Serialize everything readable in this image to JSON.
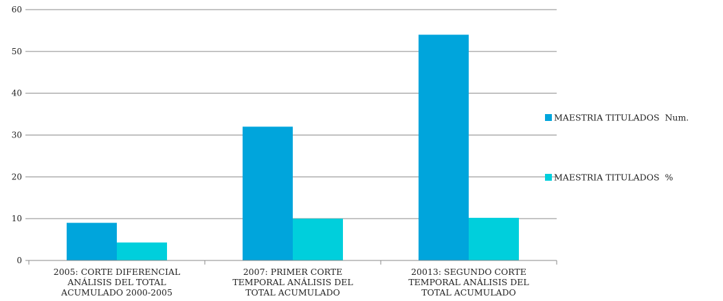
{
  "chart_data": {
    "type": "bar",
    "categories": [
      [
        "2005: CORTE DIFERENCIAL",
        "ANÁLISIS DEL TOTAL",
        "ACUMULADO 2000-2005"
      ],
      [
        "2007: PRIMER CORTE",
        "TEMPORAL ANÁLISIS DEL",
        "TOTAL ACUMULADO"
      ],
      [
        "20013: SEGUNDO CORTE",
        "TEMPORAL ANÁLISIS DEL",
        "TOTAL ACUMULADO"
      ]
    ],
    "series": [
      {
        "name": "MAESTRIA TITULADOS  Num.",
        "values": [
          9,
          32,
          54
        ],
        "color": "#00a5dc"
      },
      {
        "name": "MAESTRIA TITULADOS  %",
        "values": [
          4.3,
          10,
          10.2
        ],
        "color": "#00cfdc"
      }
    ],
    "ylim": [
      0,
      60
    ],
    "yticks": [
      0,
      10,
      20,
      30,
      40,
      50,
      60
    ],
    "grid": true,
    "legend_position": "right"
  }
}
